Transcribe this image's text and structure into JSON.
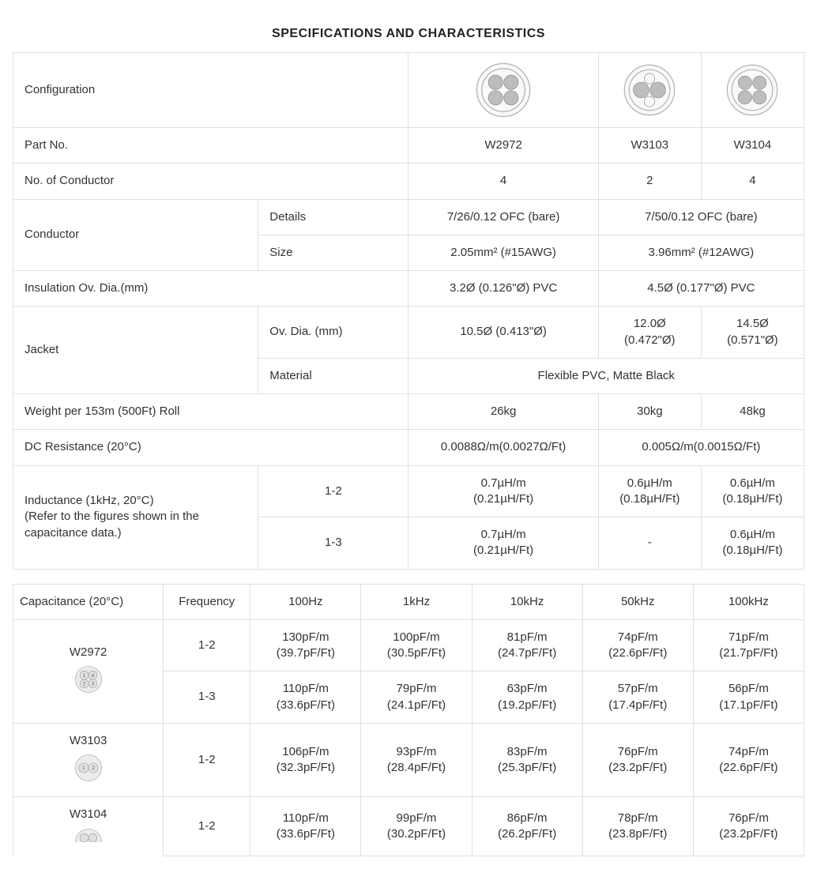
{
  "title": "SPECIFICATIONS AND CHARACTERISTICS",
  "colors": {
    "border": "#e0e0e0",
    "text": "#333",
    "icon_stroke": "#9e9e9e",
    "icon_fill": "#f4f4f4",
    "icon_inner": "#bdbdbd"
  },
  "configIcons": {
    "w2972": {
      "conductors": 4
    },
    "w3103": {
      "conductors": 2
    },
    "w3104": {
      "conductors": 4
    }
  },
  "spec": {
    "labels": {
      "config": "Configuration",
      "partno": "Part No.",
      "noCond": "No. of Conductor",
      "conductor": "Conductor",
      "details": "Details",
      "size": "Size",
      "insul": "Insulation Ov. Dia.(mm)",
      "jacket": "Jacket",
      "ovdia": "Ov. Dia. (mm)",
      "material": "Material",
      "weight": "Weight per 153m (500Ft) Roll",
      "dcres": "DC Resistance (20°C)",
      "inductance": "Inductance (1kHz, 20°C)\n(Refer to the figures shown in the capacitance data.)",
      "ind12": "1-2",
      "ind13": "1-3"
    },
    "partno": {
      "a": "W2972",
      "b": "W3103",
      "c": "W3104"
    },
    "noCond": {
      "a": "4",
      "b": "2",
      "c": "4"
    },
    "conductor_details": {
      "a": "7/26/0.12 OFC (bare)",
      "bc": "7/50/0.12 OFC (bare)"
    },
    "conductor_size": {
      "a": "2.05mm² (#15AWG)",
      "bc": "3.96mm² (#12AWG)"
    },
    "insul": {
      "a": "3.2Ø (0.126\"Ø) PVC",
      "bc": "4.5Ø (0.177\"Ø) PVC"
    },
    "jacket_ovdia": {
      "a": "10.5Ø (0.413\"Ø)",
      "b": "12.0Ø (0.472\"Ø)",
      "c": "14.5Ø (0.571\"Ø)"
    },
    "jacket_material": "Flexible PVC, Matte Black",
    "weight": {
      "a": "26kg",
      "b": "30kg",
      "c": "48kg"
    },
    "dcres": {
      "a": "0.0088Ω/m(0.0027Ω/Ft)",
      "bc": "0.005Ω/m(0.0015Ω/Ft)"
    },
    "ind12": {
      "a": "0.7µH/m\n(0.21µH/Ft)",
      "b": "0.6µH/m\n(0.18µH/Ft)",
      "c": "0.6µH/m\n(0.18µH/Ft)"
    },
    "ind13": {
      "a": "0.7µH/m\n(0.21µH/Ft)",
      "b": "-",
      "c": "0.6µH/m\n(0.18µH/Ft)"
    }
  },
  "cap": {
    "header": {
      "label": "Capacitance (20°C)",
      "freq": "Frequency",
      "f1": "100Hz",
      "f2": "1kHz",
      "f3": "10kHz",
      "f4": "50kHz",
      "f5": "100kHz"
    },
    "rows": {
      "w2972": {
        "name": "W2972",
        "r12": {
          "pair": "1-2",
          "v1": "130pF/m\n(39.7pF/Ft)",
          "v2": "100pF/m\n(30.5pF/Ft)",
          "v3": "81pF/m\n(24.7pF/Ft)",
          "v4": "74pF/m\n(22.6pF/Ft)",
          "v5": "71pF/m\n(21.7pF/Ft)"
        },
        "r13": {
          "pair": "1-3",
          "v1": "110pF/m\n(33.6pF/Ft)",
          "v2": "79pF/m\n(24.1pF/Ft)",
          "v3": "63pF/m\n(19.2pF/Ft)",
          "v4": "57pF/m\n(17.4pF/Ft)",
          "v5": "56pF/m\n(17.1pF/Ft)"
        }
      },
      "w3103": {
        "name": "W3103",
        "r12": {
          "pair": "1-2",
          "v1": "106pF/m\n(32.3pF/Ft)",
          "v2": "93pF/m\n(28.4pF/Ft)",
          "v3": "83pF/m\n(25.3pF/Ft)",
          "v4": "76pF/m\n(23.2pF/Ft)",
          "v5": "74pF/m\n(22.6pF/Ft)"
        }
      },
      "w3104": {
        "name": "W3104",
        "r12": {
          "pair": "1-2",
          "v1": "110pF/m\n(33.6pF/Ft)",
          "v2": "99pF/m\n(30.2pF/Ft)",
          "v3": "86pF/m\n(26.2pF/Ft)",
          "v4": "78pF/m\n(23.8pF/Ft)",
          "v5": "76pF/m\n(23.2pF/Ft)"
        }
      }
    }
  }
}
